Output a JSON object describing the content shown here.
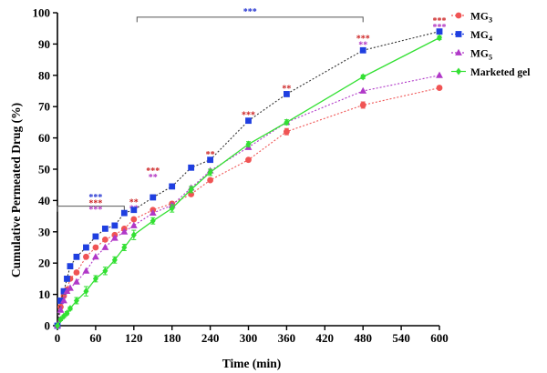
{
  "chart_data": {
    "type": "line",
    "xlabel": "Time (min)",
    "ylabel": "Cumulative Permeated Drug (%)",
    "xlim": [
      0,
      600
    ],
    "ylim": [
      0,
      100
    ],
    "xticks": [
      0,
      60,
      120,
      180,
      240,
      300,
      360,
      420,
      480,
      540,
      600
    ],
    "yticks": [
      0,
      10,
      20,
      30,
      40,
      50,
      60,
      70,
      80,
      90,
      100
    ],
    "grid": false,
    "legend_position": "top-right",
    "series": [
      {
        "name": "MG3",
        "label_main": "MG",
        "label_sub": "3",
        "color": "#f05454",
        "marker": "circle",
        "line_style": "dotted",
        "x": [
          0,
          5,
          10,
          15,
          20,
          30,
          45,
          60,
          75,
          90,
          105,
          120,
          150,
          180,
          210,
          240,
          300,
          360,
          480,
          600
        ],
        "y": [
          0,
          6,
          9.5,
          11.5,
          15,
          17,
          22,
          25,
          27.5,
          29,
          31,
          34,
          37,
          39,
          42,
          46.5,
          53,
          62,
          70.5,
          76
        ],
        "err": [
          0,
          0,
          0,
          0,
          0,
          0,
          0,
          0,
          0,
          0,
          0,
          0,
          0,
          0,
          0,
          0,
          0,
          1,
          1,
          0
        ]
      },
      {
        "name": "MG4",
        "label_main": "MG",
        "label_sub": "4",
        "color": "#1f3fe0",
        "marker": "square",
        "line_style": "dotted",
        "x": [
          0,
          5,
          10,
          15,
          20,
          30,
          45,
          60,
          75,
          90,
          105,
          120,
          150,
          180,
          210,
          240,
          300,
          360,
          480,
          600
        ],
        "y": [
          0,
          8,
          11,
          15,
          19,
          22,
          25,
          28.5,
          31,
          32,
          36,
          37,
          41,
          44.5,
          50.5,
          53,
          65.5,
          74,
          88,
          94
        ],
        "err": [
          0,
          0,
          0,
          0,
          0,
          0,
          0,
          0,
          0,
          0,
          0,
          0,
          0,
          0,
          0,
          0,
          0,
          0,
          0,
          0
        ]
      },
      {
        "name": "MG5",
        "label_main": "MG",
        "label_sub": "5",
        "color": "#b038c8",
        "marker": "triangle",
        "line_style": "dotted",
        "x": [
          0,
          5,
          10,
          15,
          20,
          30,
          45,
          60,
          75,
          90,
          105,
          120,
          150,
          180,
          210,
          240,
          300,
          360,
          480,
          600
        ],
        "y": [
          0,
          5,
          8,
          11,
          12,
          14,
          17.5,
          22,
          25,
          28,
          30,
          32,
          36,
          38.5,
          44,
          49.5,
          57,
          65,
          75,
          80
        ],
        "err": [
          0,
          0,
          0,
          0,
          0,
          0,
          0,
          0,
          0,
          0,
          0,
          0,
          0,
          0,
          0,
          0,
          0,
          0,
          0,
          0
        ]
      },
      {
        "name": "Marketed gel",
        "label_main": "Marketed gel",
        "label_sub": "",
        "color": "#33e033",
        "marker": "diamond",
        "line_style": "solid",
        "x": [
          0,
          5,
          10,
          15,
          20,
          30,
          45,
          60,
          75,
          90,
          105,
          120,
          150,
          180,
          210,
          240,
          300,
          360,
          480,
          600
        ],
        "y": [
          0,
          2,
          3,
          4,
          5.5,
          8,
          11,
          15,
          17.5,
          21,
          25,
          29,
          33.5,
          37.5,
          43.5,
          49,
          58,
          65,
          79.5,
          92
        ],
        "err": [
          0,
          0.4,
          0.4,
          0.5,
          0.5,
          1,
          1.5,
          1,
          1.2,
          1,
          1,
          1.5,
          1,
          1.2,
          1,
          1,
          0.8,
          0.8,
          0.6,
          0.6
        ]
      }
    ],
    "significance": [
      {
        "x": 60,
        "y": 41.2,
        "text": "***",
        "color": "#2030d0"
      },
      {
        "x": 60,
        "y": 39.2,
        "text": "***",
        "color": "#cc2020"
      },
      {
        "x": 60,
        "y": 37.2,
        "text": "***",
        "color": "#b030c0"
      },
      {
        "x": 120,
        "y": 39.5,
        "text": "**",
        "color": "#cc2020"
      },
      {
        "x": 120,
        "y": 37.5,
        "text": "**",
        "color": "#b030c0"
      },
      {
        "x": 150,
        "y": 49.5,
        "text": "***",
        "color": "#cc2020"
      },
      {
        "x": 150,
        "y": 47.5,
        "text": "**",
        "color": "#b030c0"
      },
      {
        "x": 240,
        "y": 54.8,
        "text": "**",
        "color": "#cc2020"
      },
      {
        "x": 300,
        "y": 67.5,
        "text": "***",
        "color": "#cc2020"
      },
      {
        "x": 360,
        "y": 75.8,
        "text": "**",
        "color": "#cc2020"
      },
      {
        "x": 480,
        "y": 91.8,
        "text": "***",
        "color": "#cc2020"
      },
      {
        "x": 480,
        "y": 89.8,
        "text": "**",
        "color": "#b030c0"
      },
      {
        "x": 600,
        "y": 97.5,
        "text": "***",
        "color": "#cc2020"
      },
      {
        "x": 600,
        "y": 95.5,
        "text": "***",
        "color": "#b030c0"
      }
    ],
    "brackets": [
      {
        "x1": 0,
        "x2": 105,
        "y": 38.2,
        "drop": 1.8,
        "label": "",
        "label_color": ""
      },
      {
        "x1": 125,
        "x2": 480,
        "y": 98.6,
        "drop": 1.6,
        "label": "***",
        "label_color": "#2030d0"
      }
    ]
  }
}
